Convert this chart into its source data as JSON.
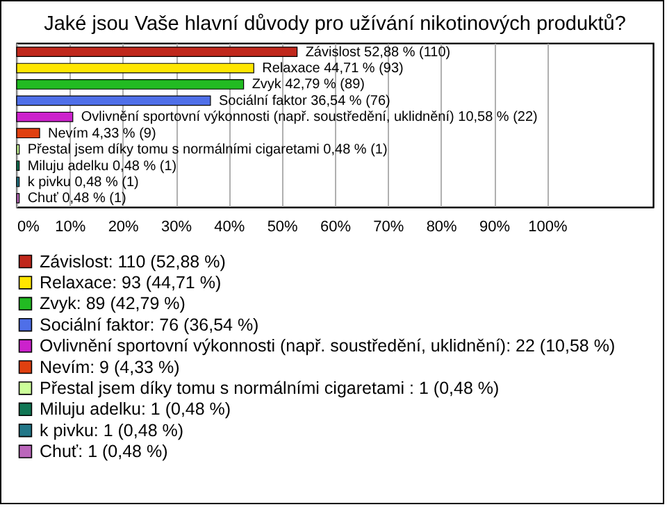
{
  "chart_data": {
    "type": "bar",
    "orientation": "horizontal",
    "stacked": true,
    "title": "Jaké jsou Vaše hlavní důvody pro užívání nikotinových produktů?",
    "categories": [
      null,
      null,
      null,
      null,
      null,
      null,
      null,
      null,
      null,
      null
    ],
    "series": [
      {
        "name": "Závislost: 110 (52,88 %)",
        "color": "#c0281c",
        "values": [
          52.88,
          null,
          null,
          null,
          null,
          null,
          null,
          null,
          null,
          null
        ],
        "value_labels": [
          "Závislost 52,88 % (110)",
          null,
          null,
          null,
          null,
          null,
          null,
          null,
          null,
          null
        ]
      },
      {
        "name": "Relaxace: 93 (44,71 %)",
        "color": "#ffe600",
        "values": [
          null,
          44.71,
          null,
          null,
          null,
          null,
          null,
          null,
          null,
          null
        ],
        "value_labels": [
          null,
          "Relaxace 44,71 % (93)",
          null,
          null,
          null,
          null,
          null,
          null,
          null,
          null
        ]
      },
      {
        "name": "Zvyk: 89 (42,79 %)",
        "color": "#22bb22",
        "values": [
          null,
          null,
          42.79,
          null,
          null,
          null,
          null,
          null,
          null,
          null
        ],
        "value_labels": [
          null,
          null,
          "Zvyk 42,79 % (89)",
          null,
          null,
          null,
          null,
          null,
          null,
          null
        ]
      },
      {
        "name": "Sociální faktor: 76 (36,54 %)",
        "color": "#4f6fe8",
        "values": [
          null,
          null,
          null,
          36.54,
          null,
          null,
          null,
          null,
          null,
          null
        ],
        "value_labels": [
          null,
          null,
          null,
          "Sociální faktor 36,54 % (76)",
          null,
          null,
          null,
          null,
          null,
          null
        ]
      },
      {
        "name": "Ovlivnění sportovní výkonnosti (např. soustředění, uklidnění): 22 (10,58 %)",
        "color": "#cc22cc",
        "values": [
          null,
          null,
          null,
          null,
          10.58,
          null,
          null,
          null,
          null,
          null
        ],
        "value_labels": [
          null,
          null,
          null,
          null,
          "Ovlivnění sportovní výkonnosti (např. soustředění, uklidnění) 10,58 % (22)",
          null,
          null,
          null,
          null,
          null
        ]
      },
      {
        "name": "Nevím: 9 (4,33 %)",
        "color": "#e04010",
        "values": [
          null,
          null,
          null,
          null,
          null,
          4.33,
          null,
          null,
          null,
          null
        ],
        "value_labels": [
          null,
          null,
          null,
          null,
          null,
          "Nevím 4,33 % (9)",
          null,
          null,
          null,
          null
        ]
      },
      {
        "name": "Přestal jsem díky tomu s normálními cigaretami : 1 (0,48 %)",
        "color": "#ccff99",
        "values": [
          null,
          null,
          null,
          null,
          null,
          null,
          0.48,
          null,
          null,
          null
        ],
        "value_labels": [
          null,
          null,
          null,
          null,
          null,
          null,
          "Přestal jsem díky tomu s normálními cigaretami  0,48 % (1)",
          null,
          null,
          null
        ]
      },
      {
        "name": "Miluju adelku: 1 (0,48 %)",
        "color": "#117755",
        "values": [
          null,
          null,
          null,
          null,
          null,
          null,
          null,
          0.48,
          null,
          null
        ],
        "value_labels": [
          null,
          null,
          null,
          null,
          null,
          null,
          null,
          "Miluju adelku 0,48 % (1)",
          null,
          null
        ]
      },
      {
        "name": "k pivku: 1 (0,48 %)",
        "color": "#227788",
        "values": [
          null,
          null,
          null,
          null,
          null,
          null,
          null,
          null,
          0.48,
          null
        ],
        "value_labels": [
          null,
          null,
          null,
          null,
          null,
          null,
          null,
          null,
          "k pivku 0,48 % (1)",
          null
        ]
      },
      {
        "name": "Chuť: 1 (0,48 %)",
        "color": "#bb66bb",
        "values": [
          null,
          null,
          null,
          null,
          null,
          null,
          null,
          null,
          null,
          0.48
        ],
        "value_labels": [
          null,
          null,
          null,
          null,
          null,
          null,
          null,
          null,
          null,
          "Chuť 0,48 % (1)"
        ]
      }
    ],
    "xlim": [
      0,
      120
    ],
    "xticks": [
      {
        "value": 0,
        "label": "0%"
      },
      {
        "value": 10,
        "label": "10%"
      },
      {
        "value": 20,
        "label": "20%"
      },
      {
        "value": 30,
        "label": "30%"
      },
      {
        "value": 40,
        "label": "40%"
      },
      {
        "value": 50,
        "label": "50%"
      },
      {
        "value": 60,
        "label": "60%"
      },
      {
        "value": 70,
        "label": "70%"
      },
      {
        "value": 80,
        "label": "80%"
      },
      {
        "value": 90,
        "label": "90%"
      },
      {
        "value": 100,
        "label": "100%"
      }
    ],
    "grid": "x",
    "legend": "bottom",
    "tick_labels": "x"
  }
}
